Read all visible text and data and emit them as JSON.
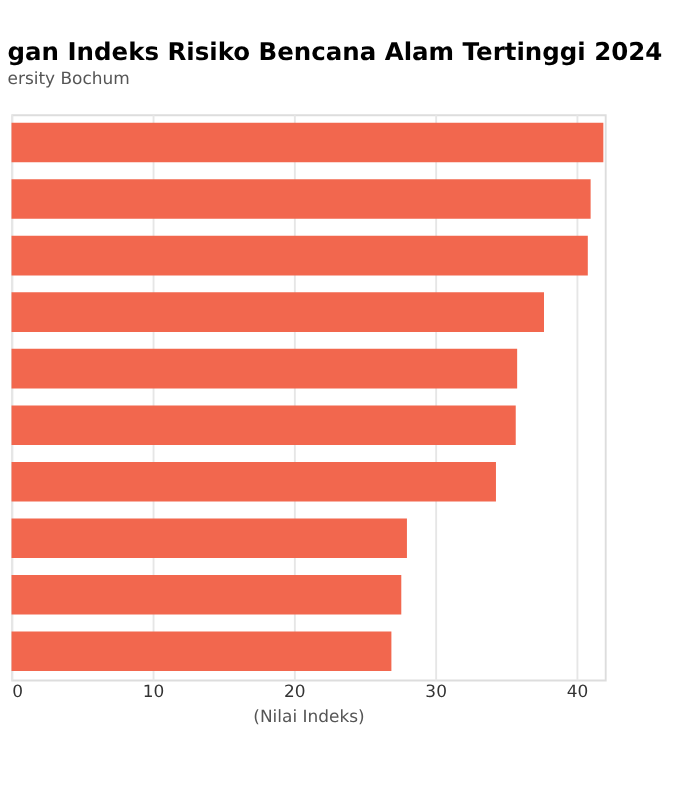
{
  "chart_data": {
    "type": "bar",
    "orientation": "horizontal",
    "title": "gan Indeks Risiko Bencana Alam Tertinggi 2024",
    "subtitle": "ersity Bochum",
    "xlabel": "(Nilai Indeks)",
    "categories": [
      null,
      null,
      null,
      null,
      null,
      null,
      null,
      null,
      null,
      null
    ],
    "values": [
      41.9,
      41.0,
      40.8,
      37.7,
      35.8,
      35.7,
      34.3,
      28.0,
      27.6,
      26.9
    ],
    "color": "#f2674e",
    "xlim": [
      0,
      42
    ],
    "xticks": [
      0,
      10,
      20,
      30,
      40
    ],
    "grid": "x"
  }
}
